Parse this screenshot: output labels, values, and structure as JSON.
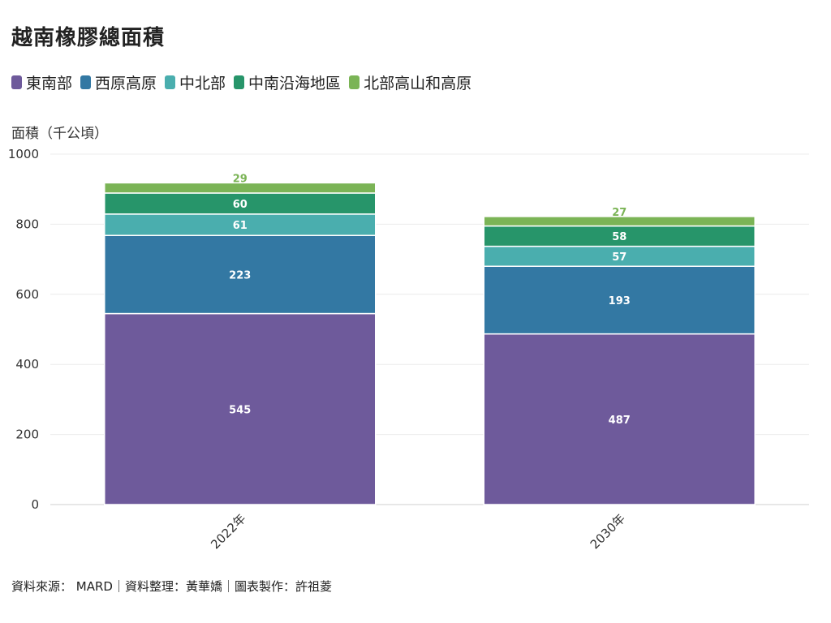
{
  "title": "越南橡膠總面積",
  "legend": [
    {
      "name": "東南部",
      "color": "#6e5a9b"
    },
    {
      "name": "西原高原",
      "color": "#3378a3"
    },
    {
      "name": "中北部",
      "color": "#4aaeae"
    },
    {
      "name": "中南沿海地區",
      "color": "#27956a"
    },
    {
      "name": "北部高山和高原",
      "color": "#7bb456"
    }
  ],
  "source": "資料來源： MARD｜資料整理：黃華嬌｜圖表製作：許祖菱",
  "chart_data": {
    "type": "bar",
    "stacked": true,
    "ylabel": "面積（千公頃）",
    "ylim": [
      0,
      1000
    ],
    "yticks": [
      "0",
      "200",
      "400",
      "600",
      "800",
      "1000"
    ],
    "categories": [
      "2022年",
      "2030年"
    ],
    "series": [
      {
        "name": "東南部",
        "color": "#6e5a9b",
        "values": [
          545,
          487
        ]
      },
      {
        "name": "西原高原",
        "color": "#3378a3",
        "values": [
          223,
          193
        ]
      },
      {
        "name": "中北部",
        "color": "#4aaeae",
        "values": [
          61,
          57
        ]
      },
      {
        "name": "中南沿海地區",
        "color": "#27956a",
        "values": [
          60,
          58
        ]
      },
      {
        "name": "北部高山和高原",
        "color": "#7bb456",
        "values": [
          29,
          27
        ]
      }
    ]
  }
}
